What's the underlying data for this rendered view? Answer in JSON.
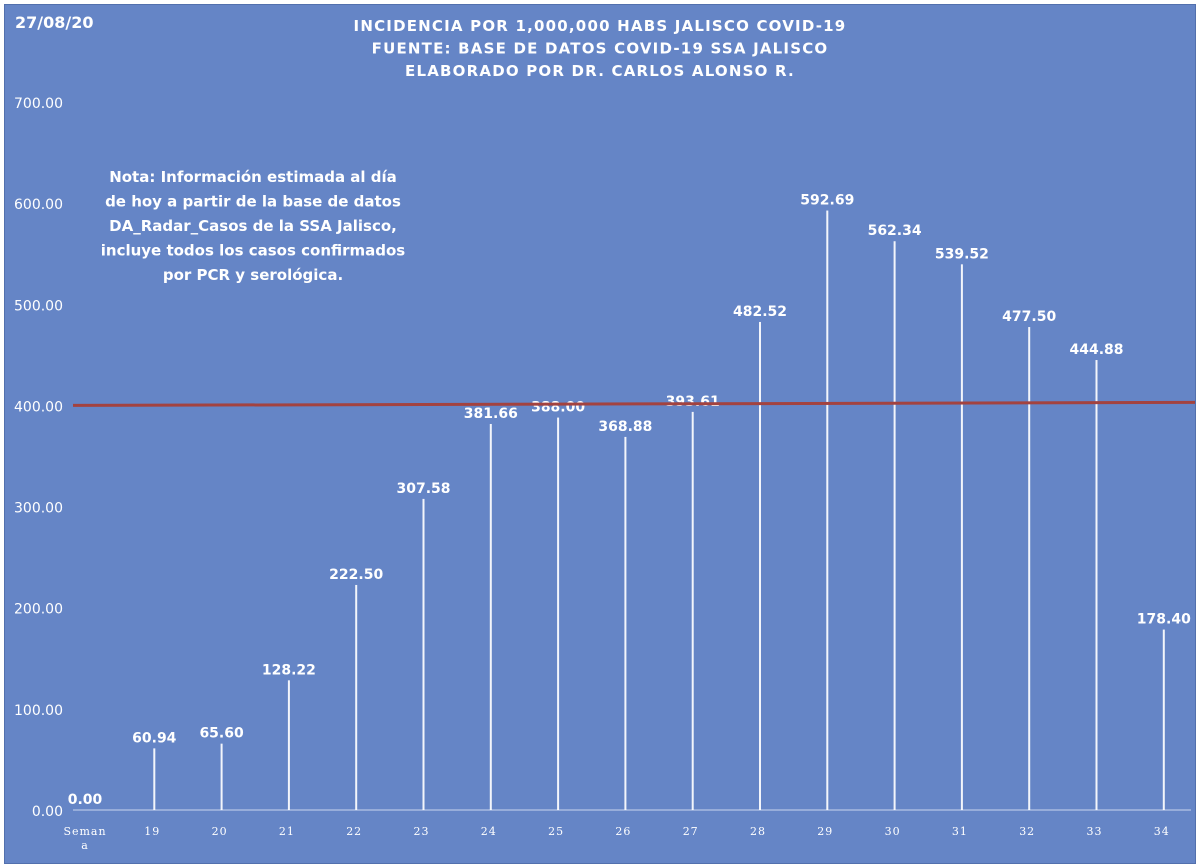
{
  "chart_data": {
    "type": "bar",
    "date_label": "27/08/20",
    "title_lines": [
      "INCIDENCIA POR 1,000,000 HABS JALISCO COVID-19",
      "FUENTE: BASE DE DATOS COVID-19 SSA JALISCO",
      "ELABORADO POR DR. CARLOS ALONSO R."
    ],
    "note_lines": [
      "Nota: Información estimada al día",
      "de hoy a partir de la base de datos",
      "DA_Radar_Casos de la SSA Jalisco,",
      "incluye todos los casos confirmados",
      "por PCR y serológica."
    ],
    "categories": [
      "Seman\na",
      "19",
      "20",
      "21",
      "22",
      "23",
      "24",
      "25",
      "26",
      "27",
      "28",
      "29",
      "30",
      "31",
      "32",
      "33",
      "34"
    ],
    "values": [
      0.0,
      60.94,
      65.6,
      128.22,
      222.5,
      307.58,
      381.66,
      388.0,
      368.88,
      393.61,
      482.52,
      592.69,
      562.34,
      539.52,
      477.5,
      444.88,
      178.4
    ],
    "data_labels": [
      "0.00",
      "60.94",
      "65.60",
      "128.22",
      "222.50",
      "307.58",
      "381.66",
      "388.00",
      "368.88",
      "393.61",
      "482.52",
      "592.69",
      "562.34",
      "539.52",
      "477.50",
      "444.88",
      "178.40"
    ],
    "yticks": [
      "0.00",
      "100.00",
      "200.00",
      "300.00",
      "400.00",
      "500.00",
      "600.00",
      "700.00"
    ],
    "ylim": [
      0,
      700
    ],
    "reference_line": {
      "y_start": 400,
      "y_end": 403,
      "color": "#a3423f"
    },
    "grid": false,
    "colors": {
      "background": "#6585c6",
      "bars": "#ffffff",
      "text": "#ffffff"
    }
  }
}
